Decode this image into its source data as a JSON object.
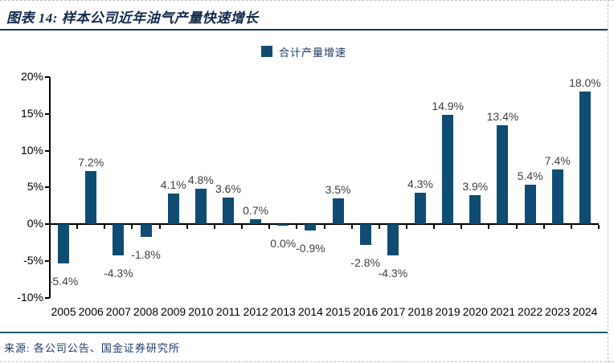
{
  "header": {
    "title": "图表 14: 样本公司近年油气产量快速增长"
  },
  "legend": {
    "label": "合计产量增速"
  },
  "footer": {
    "source": "来源: 各公司公告、国金证券研究所"
  },
  "colors": {
    "bar": "#0E4D71",
    "title": "#13294B",
    "legend": "#17375E",
    "rule_top": "#17375E",
    "rule_bottom": "#1B5E6B",
    "vlabel": "#404040",
    "tick": "#000000",
    "axis": "#000000",
    "source": "#1F3864",
    "dash": "#C0C0C0"
  },
  "chart_data": {
    "type": "bar",
    "title": "图表 14: 样本公司近年油气产量快速增长",
    "legend_entries": [
      "合计产量增速"
    ],
    "legend_position": "top-center",
    "grid": false,
    "xlabel": "",
    "ylabel": "",
    "ylim": [
      -10,
      20
    ],
    "yticks": [
      20,
      15,
      10,
      5,
      0,
      -5,
      -10
    ],
    "ytick_labels": [
      "20%",
      "15%",
      "10%",
      "5%",
      "0%",
      "-5%",
      "-10%"
    ],
    "categories": [
      "2005",
      "2006",
      "2007",
      "2008",
      "2009",
      "2010",
      "2011",
      "2012",
      "2013",
      "2014",
      "2015",
      "2016",
      "2017",
      "2018",
      "2019",
      "2020",
      "2021",
      "2022",
      "2023",
      "2024"
    ],
    "series": [
      {
        "name": "合计产量增速",
        "values": [
          -5.4,
          7.2,
          -4.3,
          -1.8,
          4.1,
          4.8,
          3.6,
          0.7,
          0.0,
          -0.9,
          3.5,
          -2.8,
          -4.3,
          4.3,
          14.9,
          3.9,
          13.4,
          5.4,
          7.4,
          18.0
        ],
        "value_labels": [
          "-5.4%",
          "7.2%",
          "-4.3%",
          "-1.8%",
          "4.1%",
          "4.8%",
          "3.6%",
          "0.7%",
          "0.0%",
          "-0.9%",
          "3.5%",
          "-2.8%",
          "-4.3%",
          "4.3%",
          "14.9%",
          "3.9%",
          "13.4%",
          "5.4%",
          "7.4%",
          "18.0%"
        ]
      }
    ]
  }
}
